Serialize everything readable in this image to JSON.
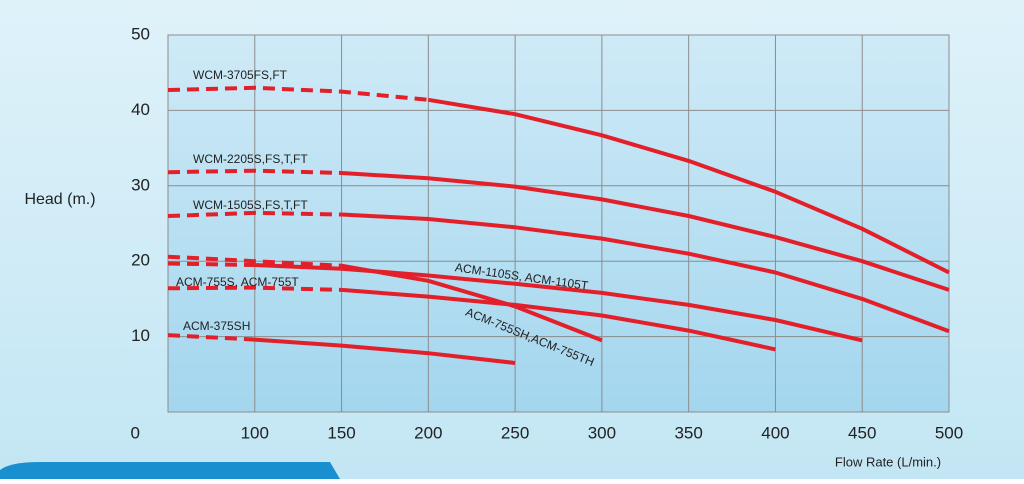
{
  "chart_data": {
    "type": "line",
    "y_label": "Head (m.)",
    "x_label": "Flow Rate (L/min.)",
    "xlim": [
      50,
      500
    ],
    "ylim": [
      0,
      50
    ],
    "xticks": [
      100,
      150,
      200,
      250,
      300,
      350,
      400,
      450,
      500
    ],
    "yticks": [
      0,
      10,
      20,
      30,
      40,
      50
    ],
    "grid": true,
    "series": [
      {
        "name": "WCM-3705FS,FT",
        "color": "#e3202a",
        "dashed_to": 200,
        "x": [
          50,
          100,
          150,
          200,
          250,
          300,
          350,
          400,
          450,
          500
        ],
        "values": [
          42.7,
          43.0,
          42.5,
          41.4,
          39.5,
          36.7,
          33.3,
          29.2,
          24.3,
          18.5
        ]
      },
      {
        "name": "WCM-2205S,FS,T,FT",
        "color": "#e3202a",
        "dashed_to": 150,
        "x": [
          50,
          100,
          150,
          200,
          250,
          300,
          350,
          400,
          450,
          500
        ],
        "values": [
          31.8,
          32.0,
          31.7,
          31.0,
          29.9,
          28.2,
          26.0,
          23.2,
          20.0,
          16.2
        ]
      },
      {
        "name": "WCM-1505S,FS,T,FT",
        "color": "#e3202a",
        "dashed_to": 150,
        "x": [
          50,
          100,
          150,
          200,
          250,
          300,
          350,
          400,
          450,
          500
        ],
        "values": [
          26.0,
          26.4,
          26.2,
          25.6,
          24.5,
          23.0,
          21.0,
          18.5,
          15.0,
          10.7
        ]
      },
      {
        "name": "ACM-1105S, ACM-1105T",
        "color": "#e3202a",
        "dashed_to": 100,
        "x": [
          50,
          100,
          150,
          200,
          250,
          300,
          350,
          400,
          450
        ],
        "values": [
          19.7,
          19.5,
          19.0,
          18.1,
          17.0,
          15.8,
          14.2,
          12.2,
          9.5
        ]
      },
      {
        "name": "ACM-755SH,ACM-755TH",
        "color": "#e3202a",
        "dashed_to": 150,
        "x": [
          50,
          100,
          150,
          200,
          250,
          300
        ],
        "values": [
          20.6,
          20.0,
          19.4,
          17.4,
          14.0,
          9.5
        ]
      },
      {
        "name": "ACM-755S, ACM-755T",
        "color": "#e3202a",
        "dashed_to": 150,
        "x": [
          50,
          100,
          150,
          200,
          250,
          300,
          350,
          400
        ],
        "values": [
          16.4,
          16.5,
          16.2,
          15.3,
          14.2,
          12.8,
          10.8,
          8.3
        ]
      },
      {
        "name": "ACM-375SH",
        "color": "#e3202a",
        "dashed_to": 100,
        "x": [
          50,
          100,
          150,
          200,
          250
        ],
        "values": [
          10.2,
          9.6,
          8.8,
          7.8,
          6.5
        ]
      }
    ]
  }
}
